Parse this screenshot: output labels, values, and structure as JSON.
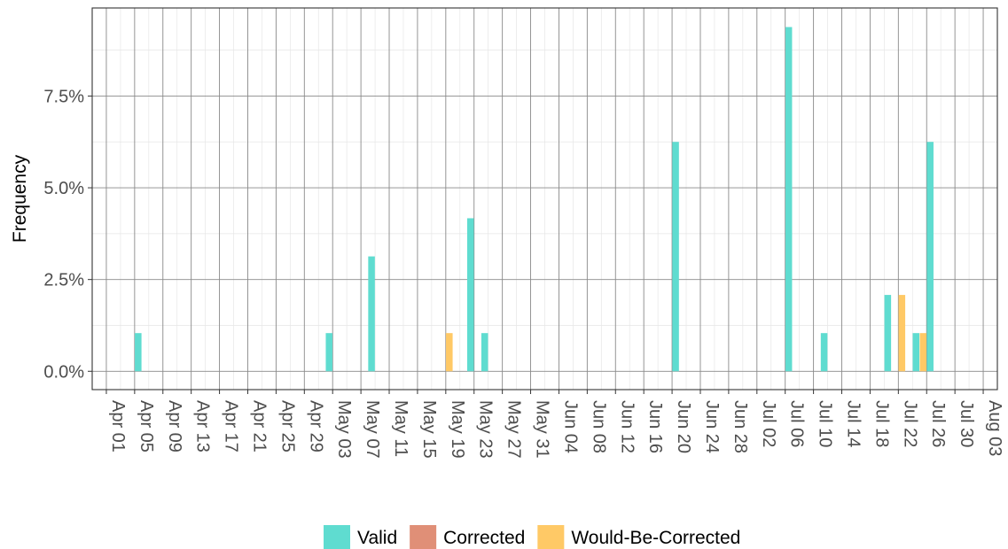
{
  "chart_data": {
    "type": "bar",
    "title": "",
    "xlabel": "",
    "ylabel": "Frequency",
    "x_range": [
      "2020-03-30",
      "2020-08-05"
    ],
    "x_ticks": [
      "Apr 01",
      "Apr 05",
      "Apr 09",
      "Apr 13",
      "Apr 17",
      "Apr 21",
      "Apr 25",
      "Apr 29",
      "May 03",
      "May 07",
      "May 11",
      "May 15",
      "May 19",
      "May 23",
      "May 27",
      "May 31",
      "Jun 04",
      "Jun 08",
      "Jun 12",
      "Jun 16",
      "Jun 20",
      "Jun 24",
      "Jun 28",
      "Jul 02",
      "Jul 06",
      "Jul 10",
      "Jul 14",
      "Jul 18",
      "Jul 22",
      "Jul 26",
      "Jul 30",
      "Aug 03"
    ],
    "ylim": [
      -0.5,
      9.9
    ],
    "y_ticks": [
      0,
      2.5,
      5,
      7.5
    ],
    "y_tick_labels": [
      "0.0%",
      "2.5%",
      "5.0%",
      "7.5%"
    ],
    "grid": true,
    "legend_position": "bottom",
    "series": [
      {
        "name": "Valid",
        "color": "#5fdcd0",
        "points": [
          {
            "x": "2020-04-05",
            "y": 1.04
          },
          {
            "x": "2020-05-02",
            "y": 1.04
          },
          {
            "x": "2020-05-08",
            "y": 3.13
          },
          {
            "x": "2020-05-22",
            "y": 4.17
          },
          {
            "x": "2020-05-24",
            "y": 1.04
          },
          {
            "x": "2020-06-20",
            "y": 6.25
          },
          {
            "x": "2020-07-06",
            "y": 9.38
          },
          {
            "x": "2020-07-11",
            "y": 1.04
          },
          {
            "x": "2020-07-20",
            "y": 2.08
          },
          {
            "x": "2020-07-24",
            "y": 1.04
          },
          {
            "x": "2020-07-26",
            "y": 6.25
          }
        ]
      },
      {
        "name": "Corrected",
        "color": "#e08f77",
        "points": []
      },
      {
        "name": "Would-Be-Corrected",
        "color": "#ffc966",
        "points": [
          {
            "x": "2020-05-19",
            "y": 1.04
          },
          {
            "x": "2020-07-22",
            "y": 2.08
          },
          {
            "x": "2020-07-25",
            "y": 1.04
          }
        ]
      }
    ]
  }
}
